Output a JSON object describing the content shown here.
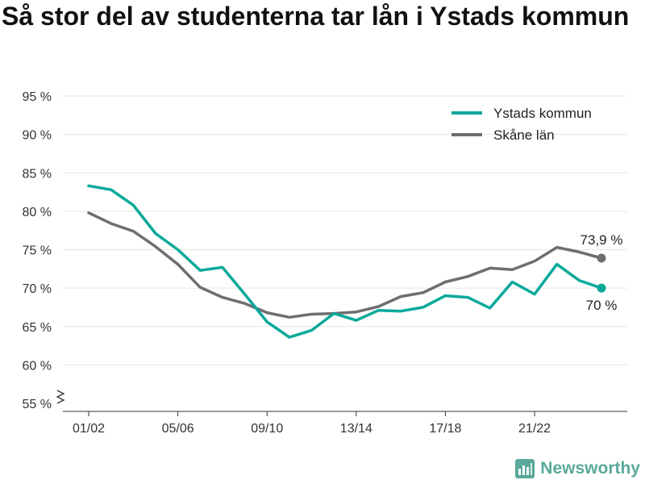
{
  "title": "Så stor del av studenterna tar lån i Ystads kommun",
  "brand": {
    "name": "Newsworthy",
    "color": "#5aa89a"
  },
  "chart_data": {
    "type": "line",
    "x": [
      "01/02",
      "02/03",
      "03/04",
      "04/05",
      "05/06",
      "06/07",
      "07/08",
      "08/09",
      "09/10",
      "10/11",
      "11/12",
      "12/13",
      "13/14",
      "14/15",
      "15/16",
      "16/17",
      "17/18",
      "18/19",
      "19/20",
      "20/21",
      "21/22",
      "22/23",
      "23/24",
      "24/25"
    ],
    "x_tick_labels": [
      "01/02",
      "05/06",
      "09/10",
      "13/14",
      "17/18",
      "21/22"
    ],
    "y_tick_labels": [
      "55 %",
      "60 %",
      "65 %",
      "70 %",
      "75 %",
      "80 %",
      "85 %",
      "90 %",
      "95 %"
    ],
    "ylim": [
      55,
      95
    ],
    "y_axis_break": true,
    "grid": true,
    "legend_position": "top-right",
    "series": [
      {
        "name": "Ystads kommun",
        "color": "#0aa99a",
        "values": [
          83.3,
          82.8,
          80.8,
          77.1,
          75.0,
          72.3,
          72.7,
          69.2,
          65.6,
          63.6,
          64.5,
          66.7,
          65.8,
          67.1,
          67.0,
          67.5,
          69.0,
          68.8,
          67.4,
          70.8,
          69.2,
          73.1,
          71.0,
          70.0
        ],
        "end_label": "70 %"
      },
      {
        "name": "Skåne län",
        "color": "#6e6e73",
        "values": [
          79.8,
          78.4,
          77.4,
          75.4,
          73.1,
          70.1,
          68.8,
          68.0,
          66.8,
          66.2,
          66.6,
          66.7,
          66.9,
          67.6,
          68.9,
          69.4,
          70.8,
          71.5,
          72.6,
          72.4,
          73.5,
          75.3,
          74.7,
          73.9
        ],
        "end_label": "73,9 %"
      }
    ]
  }
}
